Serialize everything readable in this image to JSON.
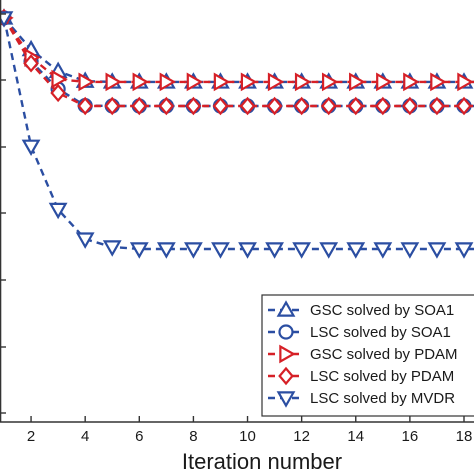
{
  "chart_data": {
    "type": "line",
    "title": "",
    "xlabel": "Iteration number",
    "ylabel": "",
    "x_ticks": [
      "2",
      "4",
      "6",
      "8",
      "10",
      "12",
      "14",
      "16",
      "18"
    ],
    "xlim": [
      1,
      18.6
    ],
    "ylim": [
      0,
      1
    ],
    "x": [
      1,
      2,
      3,
      4,
      5,
      6,
      7,
      8,
      9,
      10,
      11,
      12,
      13,
      14,
      15,
      16,
      17,
      18,
      19
    ],
    "grid": false,
    "legend_position": "bottom-right",
    "series": [
      {
        "name": "GSC solved by SOA1",
        "color": "#2b4ea2",
        "marker": "triangle-up",
        "dash": "dashed",
        "values": [
          0.985,
          0.905,
          0.85,
          0.825,
          0.823,
          0.823,
          0.823,
          0.823,
          0.823,
          0.823,
          0.823,
          0.823,
          0.823,
          0.823,
          0.823,
          0.823,
          0.823,
          0.823,
          0.823
        ]
      },
      {
        "name": "LSC solved by SOA1",
        "color": "#2b4ea2",
        "marker": "circle",
        "dash": "dashed",
        "values": [
          0.985,
          0.875,
          0.805,
          0.763,
          0.762,
          0.762,
          0.762,
          0.762,
          0.762,
          0.762,
          0.762,
          0.762,
          0.762,
          0.762,
          0.762,
          0.762,
          0.762,
          0.762,
          0.762
        ]
      },
      {
        "name": "GSC solved by PDAM",
        "color": "#d62027",
        "marker": "triangle-right",
        "dash": "dashed",
        "values": [
          0.985,
          0.885,
          0.83,
          0.823,
          0.823,
          0.823,
          0.823,
          0.823,
          0.823,
          0.823,
          0.823,
          0.823,
          0.823,
          0.823,
          0.823,
          0.823,
          0.823,
          0.823,
          0.823
        ]
      },
      {
        "name": "LSC solved by PDAM",
        "color": "#d62027",
        "marker": "diamond",
        "dash": "dashed",
        "values": [
          0.985,
          0.87,
          0.795,
          0.762,
          0.762,
          0.762,
          0.762,
          0.762,
          0.762,
          0.762,
          0.762,
          0.762,
          0.762,
          0.762,
          0.762,
          0.762,
          0.762,
          0.762,
          0.762
        ]
      },
      {
        "name": "LSC solved by MVDR",
        "color": "#2b4ea2",
        "marker": "triangle-down",
        "dash": "dashed",
        "values": [
          0.985,
          0.66,
          0.5,
          0.425,
          0.405,
          0.4,
          0.4,
          0.4,
          0.4,
          0.4,
          0.4,
          0.4,
          0.4,
          0.4,
          0.4,
          0.4,
          0.4,
          0.4,
          0.4
        ]
      }
    ]
  }
}
